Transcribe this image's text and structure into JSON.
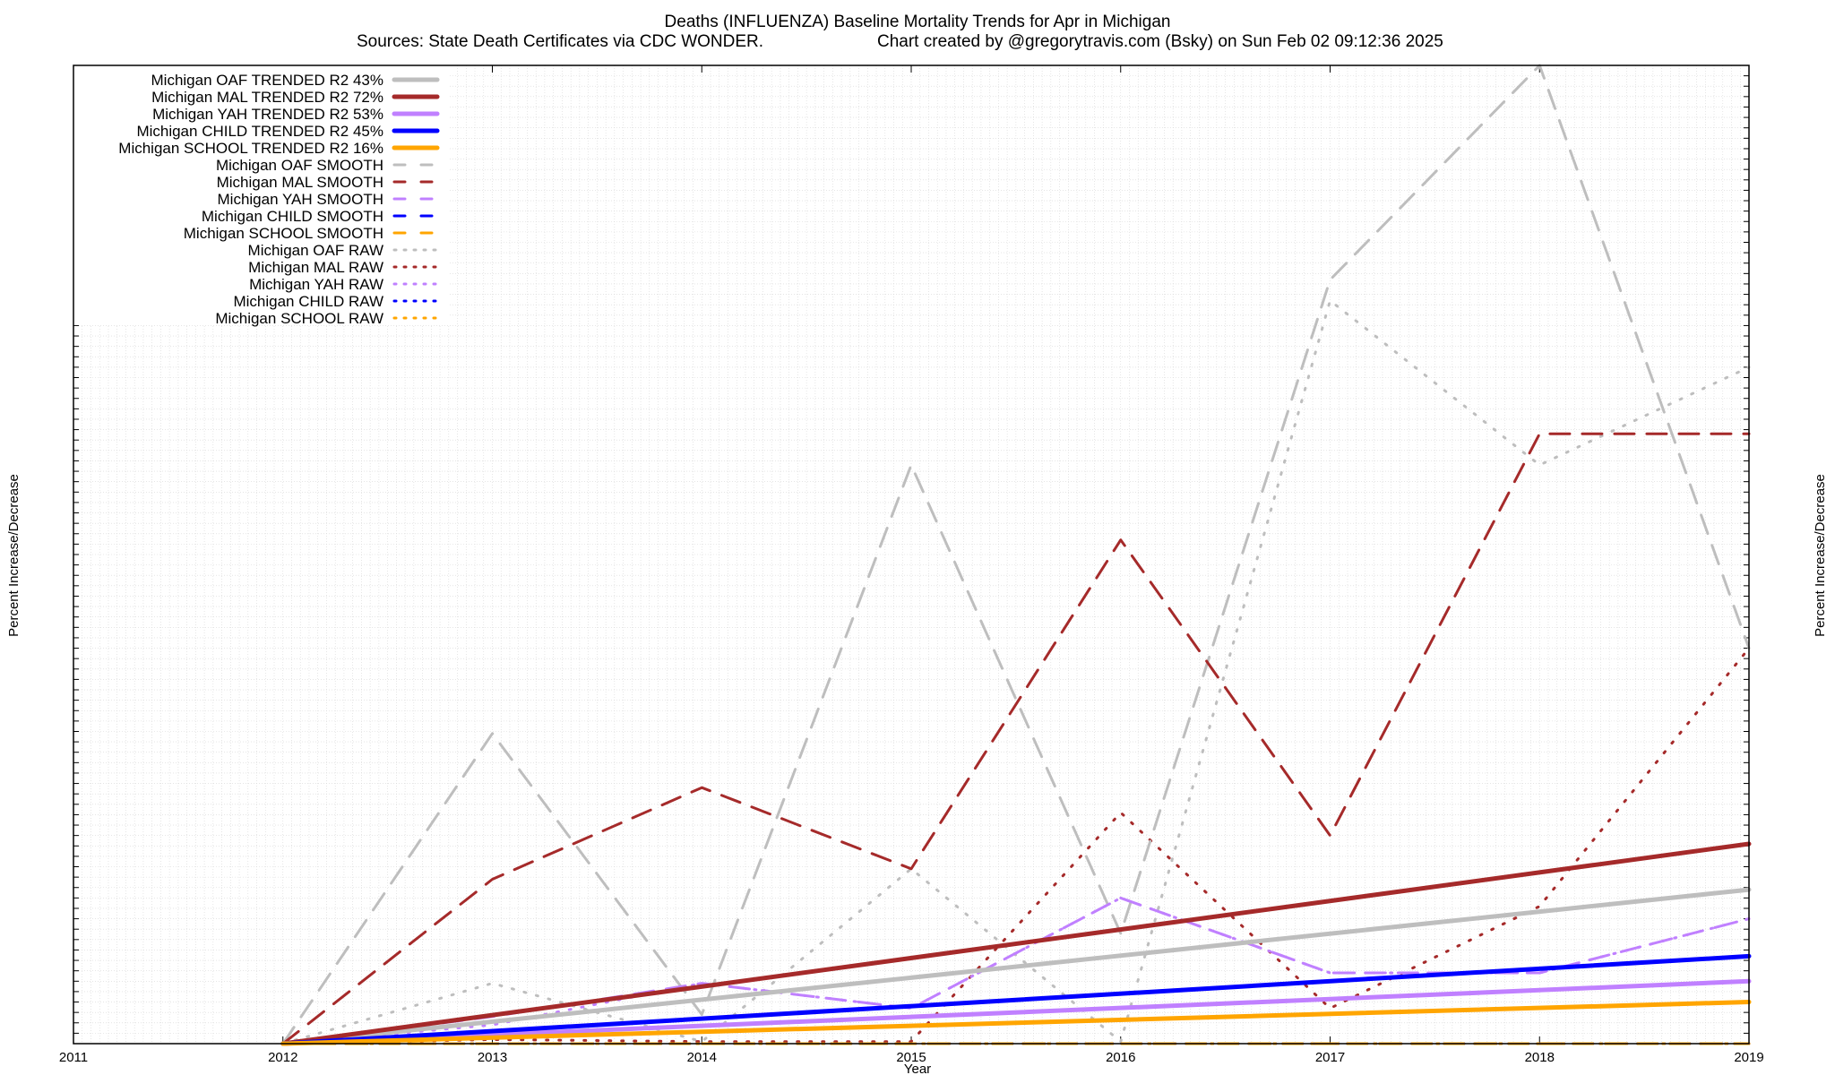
{
  "chart_data": {
    "type": "line",
    "title": "Deaths (INFLUENZA)  Baseline Mortality Trends for Apr in Michigan",
    "subtitle_left": "Sources: State Death Certificates via CDC WONDER.",
    "subtitle_right": "Chart created by @gregorytravis.com (Bsky) on Sun Feb 02 09:12:36 2025",
    "xlabel": "Year",
    "ylabel_left": "Percent Increase/Decrease",
    "ylabel_right": "Percent Increase/Decrease",
    "x_ticks": [
      "2011",
      "2012",
      "2013",
      "2014",
      "2015",
      "2016",
      "2017",
      "2018",
      "2019"
    ],
    "xlim": [
      2011,
      2019
    ],
    "ylim": [
      0,
      4700
    ],
    "grid": true,
    "legend_position": "top-left",
    "series": [
      {
        "name": "Michigan OAF TRENDED R2  43%",
        "color": "#bebebe",
        "style": "solid",
        "x": [
          2012,
          2019
        ],
        "values": [
          0,
          740
        ]
      },
      {
        "name": "Michigan MAL TRENDED R2  72%",
        "color": "#a52a2a",
        "style": "solid",
        "x": [
          2012,
          2019
        ],
        "values": [
          0,
          960
        ]
      },
      {
        "name": "Michigan YAH TRENDED R2  53%",
        "color": "#c080ff",
        "style": "solid",
        "x": [
          2012,
          2019
        ],
        "values": [
          0,
          300
        ]
      },
      {
        "name": "Michigan CHILD TRENDED R2  45%",
        "color": "#0000ff",
        "style": "solid",
        "x": [
          2012,
          2019
        ],
        "values": [
          0,
          420
        ]
      },
      {
        "name": "Michigan SCHOOL TRENDED R2  16%",
        "color": "#ffa500",
        "style": "solid",
        "x": [
          2012,
          2019
        ],
        "values": [
          0,
          200
        ]
      },
      {
        "name": "Michigan OAF SMOOTH",
        "color": "#bebebe",
        "style": "dashed",
        "x": [
          2012,
          2013,
          2014,
          2015,
          2016,
          2017,
          2018,
          2019
        ],
        "values": [
          0,
          1490,
          140,
          2780,
          530,
          3670,
          4700,
          1900
        ]
      },
      {
        "name": "Michigan MAL SMOOTH",
        "color": "#a52a2a",
        "style": "dashed",
        "x": [
          2012,
          2013,
          2014,
          2015,
          2016,
          2017,
          2018,
          2019
        ],
        "values": [
          0,
          790,
          1230,
          840,
          2420,
          1000,
          2930,
          2930
        ]
      },
      {
        "name": "Michigan YAH SMOOTH",
        "color": "#c080ff",
        "style": "dashed",
        "x": [
          2012,
          2013,
          2014,
          2015,
          2016,
          2017,
          2018,
          2019
        ],
        "values": [
          0,
          130,
          290,
          170,
          700,
          340,
          340,
          600
        ]
      },
      {
        "name": "Michigan CHILD SMOOTH",
        "color": "#0000ff",
        "style": "dashed",
        "x": [
          2012,
          2013,
          2014,
          2015,
          2016,
          2017,
          2018,
          2019
        ],
        "values": [
          0,
          0,
          0,
          0,
          0,
          0,
          0,
          0
        ]
      },
      {
        "name": "Michigan SCHOOL SMOOTH",
        "color": "#ffa500",
        "style": "dashed",
        "x": [
          2012,
          2013,
          2014,
          2015,
          2016,
          2017,
          2018,
          2019
        ],
        "values": [
          0,
          0,
          0,
          0,
          0,
          0,
          0,
          0
        ]
      },
      {
        "name": "Michigan OAF RAW",
        "color": "#bebebe",
        "style": "dotted",
        "x": [
          2012,
          2013,
          2014,
          2015,
          2016,
          2017,
          2018,
          2019
        ],
        "values": [
          0,
          290,
          10,
          840,
          10,
          3570,
          2780,
          3250
        ]
      },
      {
        "name": "Michigan MAL RAW",
        "color": "#a52a2a",
        "style": "dotted",
        "x": [
          2012,
          2013,
          2014,
          2015,
          2016,
          2017,
          2018,
          2019
        ],
        "values": [
          0,
          20,
          10,
          10,
          1110,
          170,
          660,
          1900
        ]
      },
      {
        "name": "Michigan YAH RAW",
        "color": "#c080ff",
        "style": "dotted",
        "x": [
          2012,
          2013,
          2014,
          2015,
          2016,
          2017,
          2018,
          2019
        ],
        "values": [
          0,
          90,
          290,
          170,
          700,
          340,
          340,
          600
        ]
      },
      {
        "name": "Michigan CHILD RAW",
        "color": "#0000ff",
        "style": "dotted",
        "x": [
          2012,
          2013,
          2014,
          2015,
          2016,
          2017,
          2018,
          2019
        ],
        "values": [
          0,
          0,
          0,
          0,
          0,
          0,
          0,
          0
        ]
      },
      {
        "name": "Michigan SCHOOL RAW",
        "color": "#ffa500",
        "style": "dotted",
        "x": [
          2012,
          2013,
          2014,
          2015,
          2016,
          2017,
          2018,
          2019
        ],
        "values": [
          0,
          0,
          0,
          0,
          0,
          0,
          0,
          0
        ]
      }
    ]
  }
}
